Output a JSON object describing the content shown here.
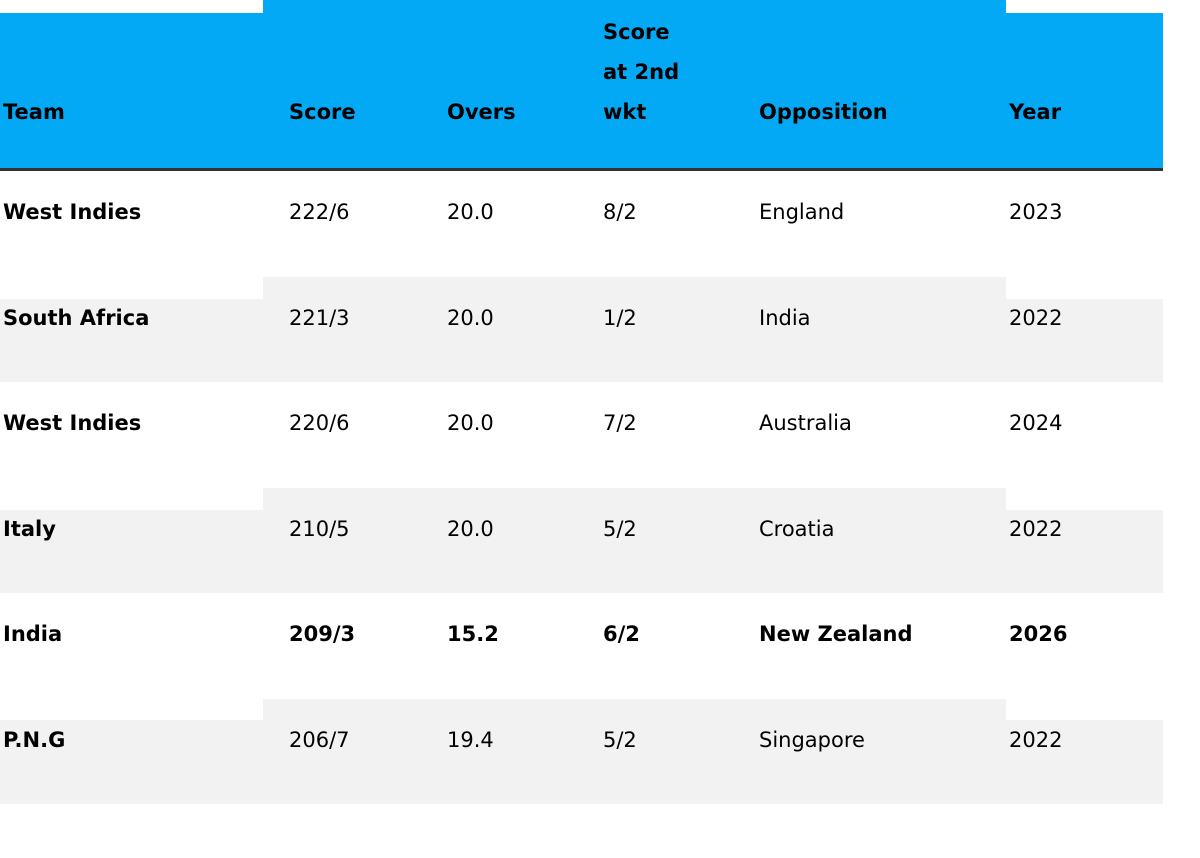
{
  "table": {
    "header_color": "#03a9f4",
    "stripe_color": "#f2f2f2",
    "columns": [
      "Team",
      "Score",
      "Overs",
      "Score\nat 2nd\nwkt",
      "Opposition",
      "Year"
    ],
    "rows": [
      {
        "cells": [
          "West Indies",
          "222/6",
          "20.0",
          "8/2",
          "England",
          "2023"
        ],
        "highlighted": false
      },
      {
        "cells": [
          "South Africa",
          "221/3",
          "20.0",
          "1/2",
          "India",
          "2022"
        ],
        "highlighted": false
      },
      {
        "cells": [
          "West Indies",
          "220/6",
          "20.0",
          "7/2",
          "Australia",
          "2024"
        ],
        "highlighted": false
      },
      {
        "cells": [
          "Italy",
          "210/5",
          "20.0",
          "5/2",
          "Croatia",
          "2022"
        ],
        "highlighted": false
      },
      {
        "cells": [
          "India",
          "209/3",
          "15.2",
          "6/2",
          "New Zealand",
          "2026"
        ],
        "highlighted": true
      },
      {
        "cells": [
          "P.N.G",
          "206/7",
          "19.4",
          "5/2",
          "Singapore",
          "2022"
        ],
        "highlighted": false
      }
    ]
  }
}
